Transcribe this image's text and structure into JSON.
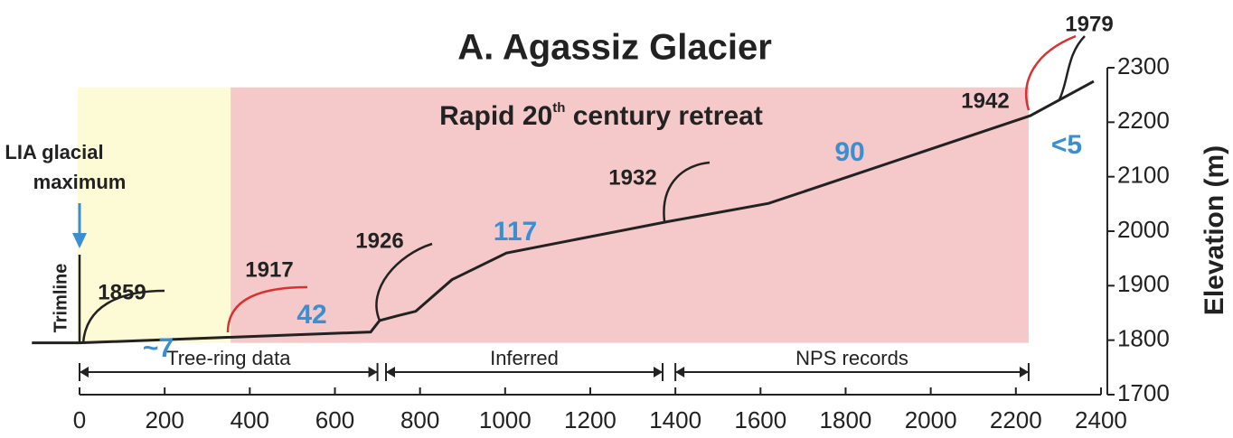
{
  "chart_data": {
    "type": "line",
    "title": "A. Agassiz Glacier",
    "y_label": "Elevation (m)",
    "x": [
      -112,
      0,
      684,
      705,
      748,
      790,
      875,
      1003,
      1385,
      1619,
      2234,
      2383
    ],
    "values": [
      1795,
      1795,
      1815,
      1836,
      1845,
      1853,
      1911,
      1960,
      2018,
      2051,
      2212,
      2275
    ],
    "color": "#222222",
    "xlim": [
      -120,
      2450
    ],
    "xticks": [
      0,
      200,
      400,
      600,
      800,
      1000,
      1200,
      1400,
      1600,
      1800,
      2000,
      2200,
      2400
    ],
    "ylim": [
      1700,
      2300
    ],
    "yticks": [
      1700,
      1800,
      1900,
      2000,
      2100,
      2200,
      2300
    ],
    "shaded_regions": [
      {
        "xlim": [
          -5,
          355
        ],
        "ylim": [
          1795,
          2264
        ],
        "color": "#fdfad6"
      },
      {
        "xlim": [
          355,
          2230
        ],
        "ylim": [
          1795,
          2264
        ],
        "color": "#f5c9c9"
      }
    ],
    "region_label": {
      "text": "Rapid 20",
      "superscript": "th",
      "rest": " century retreat"
    },
    "lia_label": [
      "LIA glacial",
      "maximum"
    ],
    "trimline_label": "Trimline",
    "years": [
      "1859",
      "1917",
      "1926",
      "1932",
      "1942",
      "1979"
    ],
    "rates": [
      "~7",
      "42",
      "117",
      "90",
      "<5"
    ],
    "rate_color": "#3a8fd0",
    "periods": [
      {
        "label": "Tree-ring data",
        "xlim": [
          0,
          700
        ]
      },
      {
        "label": "Inferred",
        "xlim": [
          720,
          1370
        ]
      },
      {
        "label": "NPS records",
        "xlim": [
          1400,
          2230
        ]
      }
    ]
  }
}
